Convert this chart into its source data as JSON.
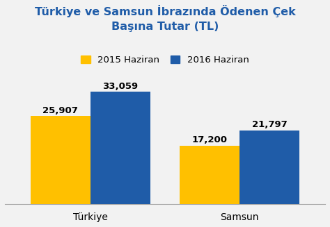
{
  "title": "Türkiye ve Samsun İbrazında Ödenen Çek\nBaşına Tutar (TL)",
  "categories": [
    "Türkiye",
    "Samsun"
  ],
  "series": [
    {
      "label": "2015 Haziran",
      "values": [
        25907,
        17200
      ],
      "color": "#FFC000"
    },
    {
      "label": "2016 Haziran",
      "values": [
        33059,
        21797
      ],
      "color": "#1F5CA8"
    }
  ],
  "bar_labels": [
    [
      "25,907",
      "17,200"
    ],
    [
      "33,059",
      "21,797"
    ]
  ],
  "ylim": [
    0,
    40000
  ],
  "title_color": "#1F5CA8",
  "title_fontsize": 11.5,
  "label_fontsize": 9.5,
  "tick_fontsize": 10,
  "legend_fontsize": 9.5,
  "background_color": "#F2F2F2",
  "bar_width": 0.28,
  "x_positions": [
    0.3,
    1.0
  ]
}
